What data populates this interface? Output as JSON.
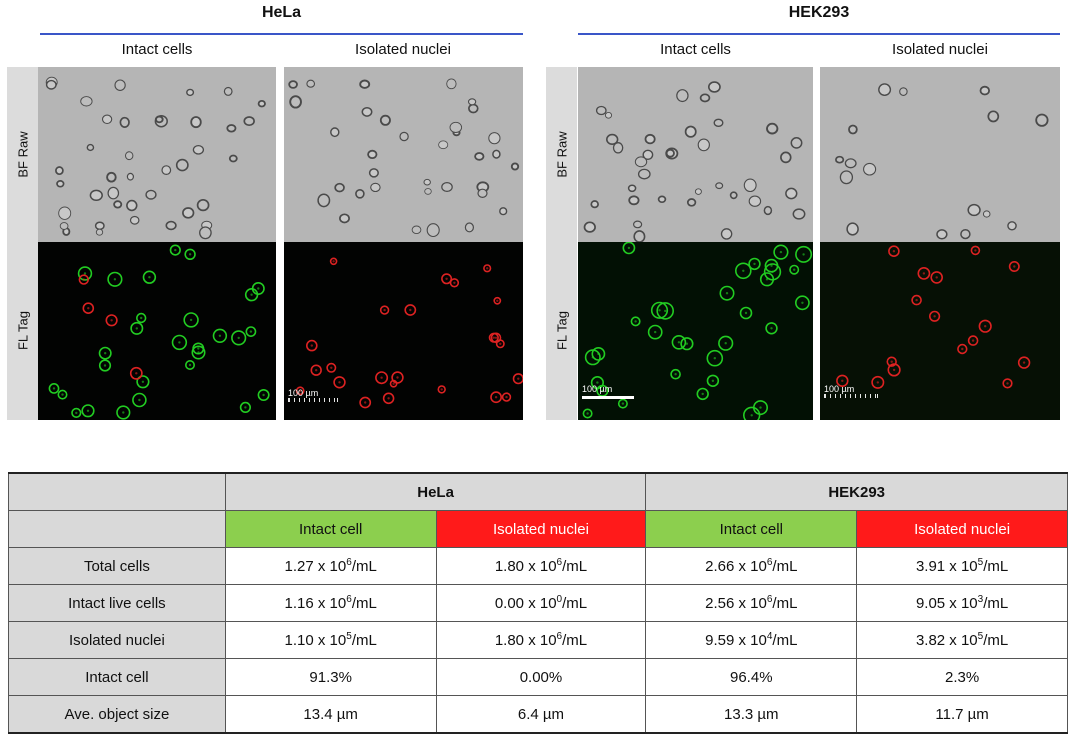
{
  "figure": {
    "panels": [
      {
        "title": "HeLa",
        "col_labels": [
          "Intact cells",
          "Isolated nuclei"
        ]
      },
      {
        "title": "HEK293",
        "col_labels": [
          "Intact cells",
          "Isolated nuclei"
        ]
      }
    ],
    "row_labels": [
      "BF Raw",
      "FL Tag"
    ],
    "scale_bar_label": "100 µm"
  },
  "table": {
    "groups": [
      "HeLa",
      "HEK293"
    ],
    "subheaders": [
      "Intact cell",
      "Isolated nuclei",
      "Intact cell",
      "Isolated nuclei"
    ],
    "rows": [
      {
        "label": "Total cells",
        "cells": [
          {
            "mant": "1.27 x 10",
            "exp": "6",
            "unit": "/mL"
          },
          {
            "mant": "1.80 x 10",
            "exp": "6",
            "unit": "/mL"
          },
          {
            "mant": "2.66 x 10",
            "exp": "6",
            "unit": "/mL"
          },
          {
            "mant": "3.91 x 10",
            "exp": "5",
            "unit": "/mL"
          }
        ]
      },
      {
        "label": "Intact live cells",
        "cells": [
          {
            "mant": "1.16 x 10",
            "exp": "6",
            "unit": "/mL"
          },
          {
            "mant": "0.00 x 10",
            "exp": "0",
            "unit": "/mL"
          },
          {
            "mant": "2.56 x 10",
            "exp": "6",
            "unit": "/mL"
          },
          {
            "mant": "9.05 x 10",
            "exp": "3",
            "unit": "/mL"
          }
        ]
      },
      {
        "label": "Isolated nuclei",
        "cells": [
          {
            "mant": "1.10 x 10",
            "exp": "5",
            "unit": "/mL"
          },
          {
            "mant": "1.80 x 10",
            "exp": "6",
            "unit": "/mL"
          },
          {
            "mant": "9.59 x 10",
            "exp": "4",
            "unit": "/mL"
          },
          {
            "mant": "3.82 x 10",
            "exp": "5",
            "unit": "/mL"
          }
        ]
      },
      {
        "label": "Intact cell",
        "cells": [
          {
            "text": "91.3%"
          },
          {
            "text": "0.00%"
          },
          {
            "text": "96.4%"
          },
          {
            "text": "2.3%"
          }
        ]
      },
      {
        "label": "Ave. object size",
        "cells": [
          {
            "text": "13.4 µm"
          },
          {
            "text": "6.4 µm"
          },
          {
            "text": "13.3 µm"
          },
          {
            "text": "11.7 µm"
          }
        ]
      }
    ]
  },
  "colors": {
    "title_rule": "#3a56c8",
    "intact_header": "#8ccf4e",
    "nuclei_header": "#ff1a1a",
    "green_marker": "#22cc22",
    "red_marker": "#dd2222"
  }
}
